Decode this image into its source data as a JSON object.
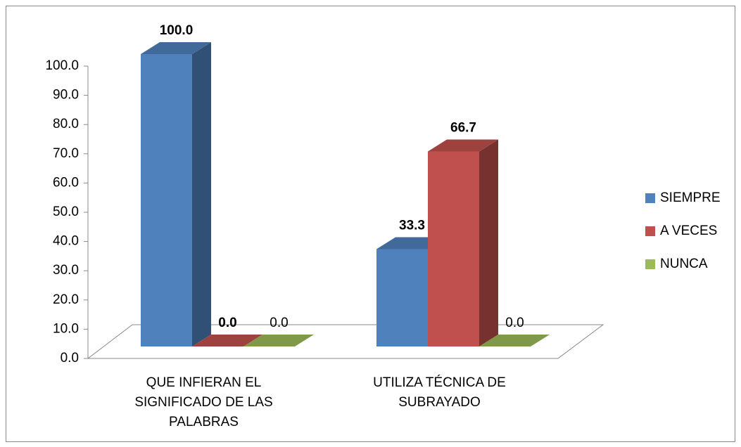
{
  "chart_data": {
    "type": "bar3d",
    "categories": [
      [
        "QUE INFIERAN EL",
        "SIGNIFICADO DE LAS",
        "PALABRAS"
      ],
      [
        "UTILIZA TÉCNICA DE",
        "SUBRAYADO"
      ]
    ],
    "series": [
      {
        "name": "SIEMPRE",
        "color": "#4f81bd",
        "values": [
          100,
          33.3
        ],
        "value_labels": [
          "100.0",
          "33.3"
        ],
        "label_weight": "bold"
      },
      {
        "name": "A VECES",
        "color": "#c0504d",
        "values": [
          0,
          66.7
        ],
        "value_labels": [
          "0.0",
          "66.7"
        ],
        "label_weight": "bold"
      },
      {
        "name": "NUNCA",
        "color": "#9bbb59",
        "values": [
          0,
          0
        ],
        "value_labels": [
          "0.0",
          "0.0"
        ],
        "label_weight": "normal"
      }
    ],
    "ylim": [
      0,
      100
    ],
    "yticks": [
      {
        "value": 0,
        "label": "0.0"
      },
      {
        "value": 10,
        "label": "10.0"
      },
      {
        "value": 20,
        "label": "20.0"
      },
      {
        "value": 30,
        "label": "30.0"
      },
      {
        "value": 40,
        "label": "40.0"
      },
      {
        "value": 50,
        "label": "50.0"
      },
      {
        "value": 60,
        "label": "60.0"
      },
      {
        "value": 70,
        "label": "70.0"
      },
      {
        "value": 80,
        "label": "80.0"
      },
      {
        "value": 90,
        "label": "90.0"
      },
      {
        "value": 100,
        "label": "100.0"
      }
    ],
    "legend": "right"
  }
}
